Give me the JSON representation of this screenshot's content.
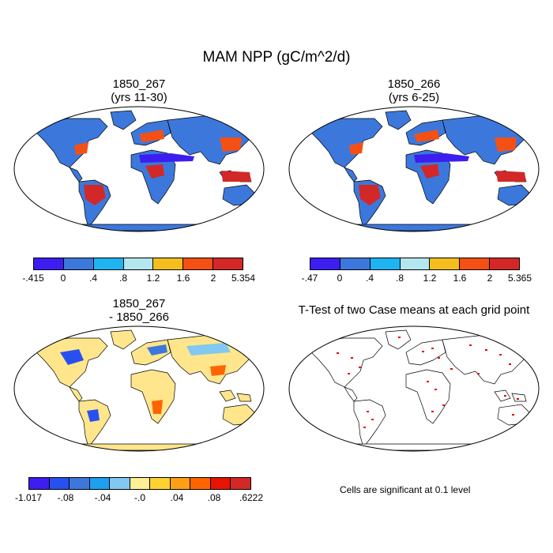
{
  "title": "MAM NPP (gC/m^2/d)",
  "panels": [
    {
      "line1": "1850_267",
      "line2": "(yrs 11-30)"
    },
    {
      "line1": "1850_266",
      "line2": "(yrs 6-25)"
    },
    {
      "line1": "1850_267",
      "line2": "- 1850_266"
    },
    {
      "line1": "T-Test of two Case means at each grid point",
      "line2": ""
    }
  ],
  "colorbar_abs_left": {
    "labels": [
      "-.415",
      "0",
      ".4",
      ".8",
      "1.2",
      "1.6",
      "2",
      "5.354"
    ],
    "colors": [
      "#3c1ef0",
      "#3c78dc",
      "#1eb4f0",
      "#b4e6f0",
      "#f5be1e",
      "#f55014",
      "#d22828"
    ]
  },
  "colorbar_abs_right": {
    "labels": [
      "-.47",
      "0",
      ".4",
      ".8",
      "1.2",
      "1.6",
      "2",
      "5.365"
    ],
    "colors": [
      "#3c1ef0",
      "#3c78dc",
      "#1eb4f0",
      "#b4e6f0",
      "#f5be1e",
      "#f55014",
      "#d22828"
    ]
  },
  "colorbar_diff": {
    "labels": [
      "-1.017",
      "-.08",
      "-.04",
      "-.0",
      ".04",
      ".08",
      ".6222"
    ],
    "colors": [
      "#3c1ef0",
      "#2850f0",
      "#3c78dc",
      "#1ea0f0",
      "#82c8f0",
      "#fff096",
      "#ffd232",
      "#ffa014",
      "#ff6400",
      "#e61400",
      "#d22828"
    ]
  },
  "significance_note": "Cells are significant at 0.1 level",
  "map_fill": {
    "abs_base": "#3c78dc",
    "abs_antarctica": "#3c78dc",
    "diff_base": "#ffe68c",
    "ttest_dots": "#e60000"
  }
}
